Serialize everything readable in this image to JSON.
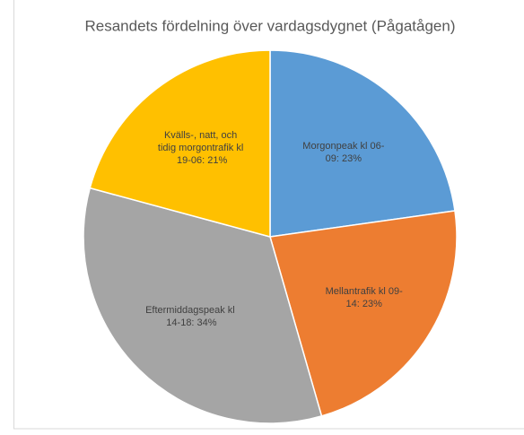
{
  "chart_data": {
    "type": "pie",
    "title": "Resandets fördelning över vardagsdygnet (Pågatågen)",
    "categories": [
      "Morgonpeak kl 06-09",
      "Mellantrafik kl 09-14",
      "Eftermiddagspeak kl 14-18",
      "Kvälls-, natt, och tidig morgontrafik kl 19-06"
    ],
    "values": [
      23,
      23,
      34,
      21
    ],
    "value_labels": [
      "Morgonpeak kl 06-09: 23%",
      "Mellantrafik kl 09-14: 23%",
      "Eftermiddagspeak kl 14-18: 34%",
      "Kvälls-, natt, och tidig morgontrafik kl 19-06: 21%"
    ],
    "colors": [
      "#5b9bd5",
      "#ed7d31",
      "#a5a5a5",
      "#ffc000"
    ]
  }
}
